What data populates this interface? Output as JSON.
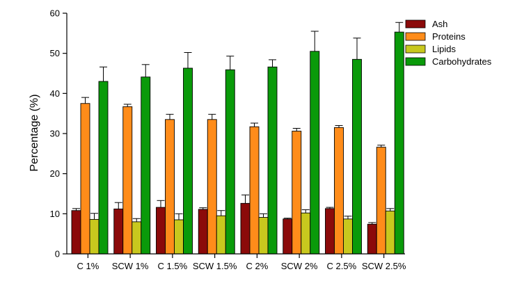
{
  "chart_data": {
    "type": "bar",
    "title": "",
    "xlabel": "",
    "ylabel": "Percentage (%)",
    "ylim": [
      0,
      60
    ],
    "yticks": [
      0,
      10,
      20,
      30,
      40,
      50,
      60
    ],
    "grid": false,
    "legend_position": "top-right",
    "categories": [
      "C 1%",
      "SCW 1%",
      "C 1.5%",
      "SCW 1.5%",
      "C 2%",
      "SCW 2%",
      "C 2.5%",
      "SCW 2.5%"
    ],
    "series": [
      {
        "name": "Ash",
        "color": "#8b0a0a",
        "values": [
          10.8,
          11.2,
          11.6,
          11.1,
          12.6,
          8.7,
          11.3,
          7.4
        ],
        "errors": [
          0.5,
          1.6,
          1.7,
          0.4,
          2.1,
          0.2,
          0.3,
          0.4
        ]
      },
      {
        "name": "Proteins",
        "color": "#ff8c1a",
        "values": [
          37.5,
          36.7,
          33.5,
          33.5,
          31.7,
          30.6,
          31.5,
          26.6
        ],
        "errors": [
          1.5,
          0.6,
          1.3,
          1.3,
          0.9,
          0.7,
          0.5,
          0.5
        ]
      },
      {
        "name": "Lipids",
        "color": "#c8c81e",
        "values": [
          8.6,
          8.0,
          8.5,
          9.5,
          9.1,
          10.2,
          8.7,
          10.7
        ],
        "errors": [
          1.5,
          0.8,
          1.5,
          1.3,
          0.9,
          0.8,
          0.7,
          0.6
        ]
      },
      {
        "name": "Carbohydrates",
        "color": "#0a9a0a",
        "values": [
          43.0,
          44.1,
          46.3,
          45.9,
          46.6,
          50.5,
          48.5,
          55.3
        ],
        "errors": [
          3.6,
          3.1,
          3.9,
          3.4,
          1.8,
          5.0,
          5.3,
          2.4
        ]
      }
    ]
  }
}
